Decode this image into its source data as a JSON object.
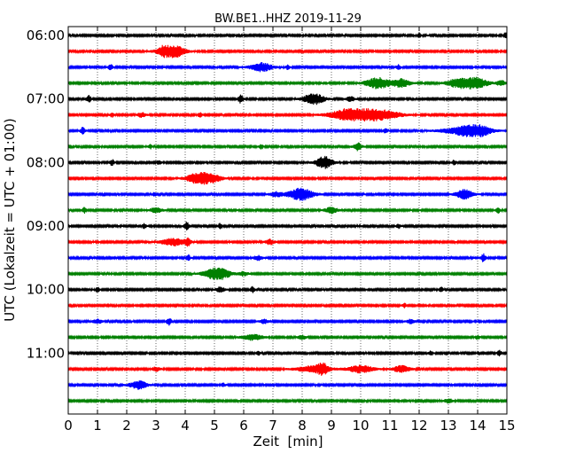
{
  "chart_data": {
    "type": "line",
    "title": "BW.BE1..HHZ 2019-11-29",
    "xlabel": "Zeit  [min]",
    "ylabel": "UTC (Lokalzeit = UTC + 01:00)",
    "xlim": [
      0,
      15
    ],
    "x_ticks": [
      "0",
      "1",
      "2",
      "3",
      "4",
      "5",
      "6",
      "7",
      "8",
      "9",
      "10",
      "11",
      "12",
      "13",
      "14",
      "15"
    ],
    "hour_labels": [
      {
        "label": "06:00",
        "row": 0
      },
      {
        "label": "07:00",
        "row": 4
      },
      {
        "label": "08:00",
        "row": 8
      },
      {
        "label": "09:00",
        "row": 12
      },
      {
        "label": "10:00",
        "row": 16
      },
      {
        "label": "11:00",
        "row": 20
      }
    ],
    "color_cycle": [
      "#000000",
      "#ff0000",
      "#0000ff",
      "#008000"
    ],
    "grid_x": true,
    "grid_style": "dotted",
    "rows": [
      {
        "start": "06:00",
        "events": [
          {
            "t": 12.0,
            "a": 0.35,
            "d": 0.05
          },
          {
            "t": 14.95,
            "a": 0.4,
            "d": 0.05
          }
        ]
      },
      {
        "start": "06:15",
        "events": [
          {
            "t": 3.45,
            "a": 0.95,
            "d": 0.25
          },
          {
            "t": 3.6,
            "a": 0.5,
            "d": 0.3
          }
        ]
      },
      {
        "start": "06:30",
        "events": [
          {
            "t": 1.45,
            "a": 0.45,
            "d": 0.05
          },
          {
            "t": 6.6,
            "a": 0.65,
            "d": 0.25
          },
          {
            "t": 7.5,
            "a": 0.3,
            "d": 0.05
          },
          {
            "t": 11.3,
            "a": 0.35,
            "d": 0.05
          }
        ]
      },
      {
        "start": "06:45",
        "events": [
          {
            "t": 10.6,
            "a": 0.8,
            "d": 0.3
          },
          {
            "t": 11.4,
            "a": 0.6,
            "d": 0.2
          },
          {
            "t": 13.3,
            "a": 0.6,
            "d": 0.25
          },
          {
            "t": 13.9,
            "a": 0.85,
            "d": 0.3
          },
          {
            "t": 14.8,
            "a": 0.4,
            "d": 0.1
          }
        ]
      },
      {
        "start": "07:00",
        "events": [
          {
            "t": 0.7,
            "a": 0.5,
            "d": 0.06
          },
          {
            "t": 5.9,
            "a": 0.6,
            "d": 0.06
          },
          {
            "t": 8.4,
            "a": 0.8,
            "d": 0.25
          },
          {
            "t": 9.65,
            "a": 0.35,
            "d": 0.1
          }
        ]
      },
      {
        "start": "07:15",
        "events": [
          {
            "t": 1.5,
            "a": 0.3,
            "d": 0.05
          },
          {
            "t": 2.5,
            "a": 0.35,
            "d": 0.1
          },
          {
            "t": 4.5,
            "a": 0.3,
            "d": 0.05
          },
          {
            "t": 9.6,
            "a": 0.45,
            "d": 0.5
          },
          {
            "t": 10.05,
            "a": 0.95,
            "d": 0.5
          },
          {
            "t": 10.9,
            "a": 0.4,
            "d": 0.4
          }
        ]
      },
      {
        "start": "07:30",
        "events": [
          {
            "t": 0.5,
            "a": 0.5,
            "d": 0.06
          },
          {
            "t": 10.85,
            "a": 0.35,
            "d": 0.05
          },
          {
            "t": 13.4,
            "a": 0.4,
            "d": 0.5
          },
          {
            "t": 13.95,
            "a": 0.8,
            "d": 0.35
          }
        ]
      },
      {
        "start": "07:45",
        "events": [
          {
            "t": 2.8,
            "a": 0.3,
            "d": 0.05
          },
          {
            "t": 6.6,
            "a": 0.35,
            "d": 0.05
          },
          {
            "t": 9.9,
            "a": 0.55,
            "d": 0.1
          }
        ]
      },
      {
        "start": "08:00",
        "events": [
          {
            "t": 1.5,
            "a": 0.45,
            "d": 0.05
          },
          {
            "t": 3.1,
            "a": 0.3,
            "d": 0.05
          },
          {
            "t": 8.75,
            "a": 0.9,
            "d": 0.2
          },
          {
            "t": 13.2,
            "a": 0.35,
            "d": 0.05
          }
        ]
      },
      {
        "start": "08:15",
        "events": [
          {
            "t": 4.5,
            "a": 0.9,
            "d": 0.3
          },
          {
            "t": 5.0,
            "a": 0.35,
            "d": 0.2
          }
        ]
      },
      {
        "start": "08:30",
        "events": [
          {
            "t": 2.95,
            "a": 0.3,
            "d": 0.05
          },
          {
            "t": 7.1,
            "a": 0.35,
            "d": 0.15
          },
          {
            "t": 7.95,
            "a": 0.9,
            "d": 0.3
          },
          {
            "t": 13.55,
            "a": 0.7,
            "d": 0.2
          }
        ]
      },
      {
        "start": "08:45",
        "events": [
          {
            "t": 0.55,
            "a": 0.4,
            "d": 0.05
          },
          {
            "t": 3.0,
            "a": 0.35,
            "d": 0.15
          },
          {
            "t": 9.0,
            "a": 0.45,
            "d": 0.15
          },
          {
            "t": 14.7,
            "a": 0.4,
            "d": 0.05
          }
        ]
      },
      {
        "start": "09:00",
        "events": [
          {
            "t": 2.6,
            "a": 0.35,
            "d": 0.05
          },
          {
            "t": 4.05,
            "a": 0.6,
            "d": 0.06
          },
          {
            "t": 5.2,
            "a": 0.4,
            "d": 0.05
          },
          {
            "t": 11.3,
            "a": 0.3,
            "d": 0.05
          }
        ]
      },
      {
        "start": "09:15",
        "events": [
          {
            "t": 3.6,
            "a": 0.55,
            "d": 0.3
          },
          {
            "t": 4.1,
            "a": 0.5,
            "d": 0.06
          },
          {
            "t": 6.9,
            "a": 0.4,
            "d": 0.1
          }
        ]
      },
      {
        "start": "09:30",
        "events": [
          {
            "t": 4.1,
            "a": 0.45,
            "d": 0.05
          },
          {
            "t": 6.5,
            "a": 0.35,
            "d": 0.1
          },
          {
            "t": 14.2,
            "a": 0.6,
            "d": 0.06
          }
        ]
      },
      {
        "start": "09:45",
        "events": [
          {
            "t": 5.1,
            "a": 0.95,
            "d": 0.3
          },
          {
            "t": 6.0,
            "a": 0.3,
            "d": 0.1
          }
        ]
      },
      {
        "start": "10:00",
        "events": [
          {
            "t": 1.0,
            "a": 0.35,
            "d": 0.05
          },
          {
            "t": 5.2,
            "a": 0.4,
            "d": 0.1
          },
          {
            "t": 6.3,
            "a": 0.45,
            "d": 0.05
          },
          {
            "t": 12.75,
            "a": 0.35,
            "d": 0.05
          }
        ]
      },
      {
        "start": "10:15",
        "events": [
          {
            "t": 11.5,
            "a": 0.3,
            "d": 0.05
          }
        ]
      },
      {
        "start": "10:30",
        "events": [
          {
            "t": 1.0,
            "a": 0.35,
            "d": 0.1
          },
          {
            "t": 3.45,
            "a": 0.55,
            "d": 0.06
          },
          {
            "t": 6.7,
            "a": 0.3,
            "d": 0.1
          },
          {
            "t": 11.7,
            "a": 0.3,
            "d": 0.1
          }
        ]
      },
      {
        "start": "10:45",
        "events": [
          {
            "t": 6.3,
            "a": 0.4,
            "d": 0.25
          },
          {
            "t": 8.0,
            "a": 0.3,
            "d": 0.1
          },
          {
            "t": 14.0,
            "a": 0.3,
            "d": 0.05
          }
        ]
      },
      {
        "start": "11:00",
        "events": [
          {
            "t": 6.5,
            "a": 0.3,
            "d": 0.05
          },
          {
            "t": 12.4,
            "a": 0.35,
            "d": 0.05
          },
          {
            "t": 14.75,
            "a": 0.45,
            "d": 0.05
          }
        ]
      },
      {
        "start": "11:15",
        "events": [
          {
            "t": 3.0,
            "a": 0.3,
            "d": 0.1
          },
          {
            "t": 8.4,
            "a": 0.5,
            "d": 0.4
          },
          {
            "t": 8.7,
            "a": 0.75,
            "d": 0.1
          },
          {
            "t": 10.0,
            "a": 0.55,
            "d": 0.3
          },
          {
            "t": 11.4,
            "a": 0.5,
            "d": 0.2
          }
        ]
      },
      {
        "start": "11:30",
        "events": [
          {
            "t": 2.4,
            "a": 0.6,
            "d": 0.2
          },
          {
            "t": 5.3,
            "a": 0.25,
            "d": 0.05
          }
        ]
      },
      {
        "start": "11:45",
        "events": [
          {
            "t": 13.0,
            "a": 0.3,
            "d": 0.1
          }
        ]
      }
    ]
  }
}
